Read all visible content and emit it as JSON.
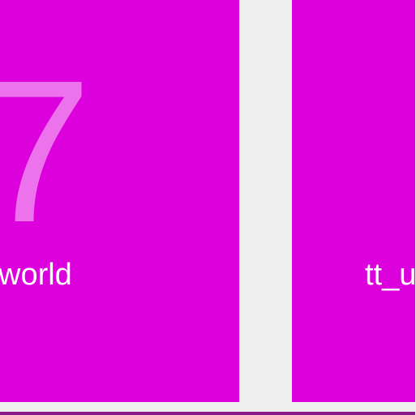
{
  "tiles": [
    {
      "number": "7",
      "label": "world"
    },
    {
      "label": "tt_u"
    }
  ],
  "colors": {
    "tile_background": "#dc00dc",
    "page_background": "#efefef",
    "bottom_accent": "#8a1a8a",
    "text": "#ffffff"
  }
}
